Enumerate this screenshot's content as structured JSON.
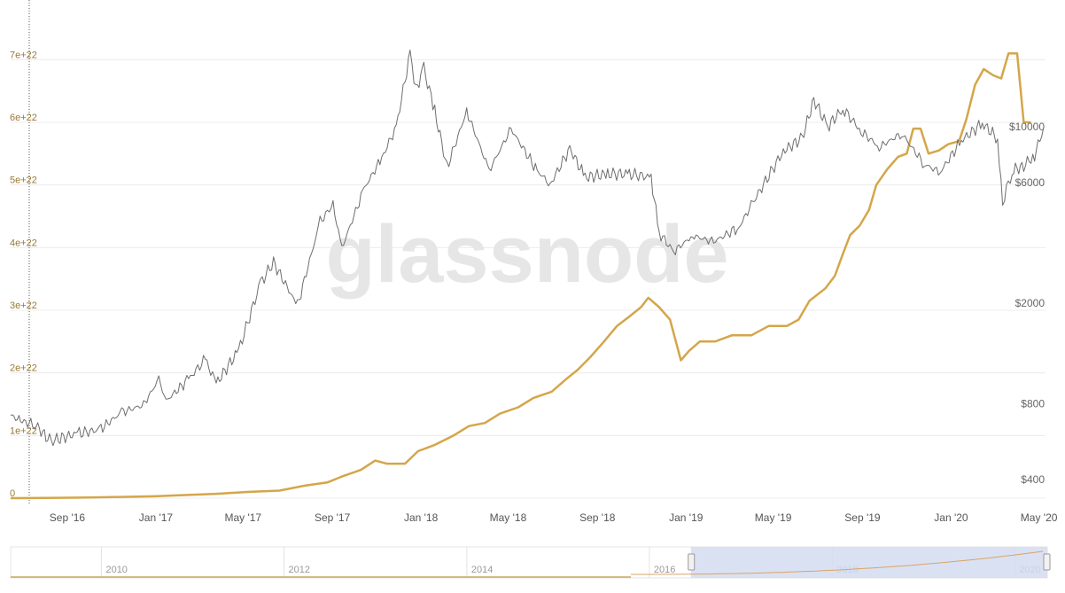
{
  "watermark": "glassnode",
  "colors": {
    "difficulty": "#D4A64A",
    "price": "#6E6E6E",
    "left_axis_text": "#9A7A36",
    "grid": "#ECECEC",
    "navigator_mask": "#D3DCF0",
    "navigator_line": "#D9A468"
  },
  "chart_data": {
    "type": "line",
    "x_axis": {
      "type": "date",
      "tick_labels": [
        "Sep '16",
        "Jan '17",
        "May '17",
        "Sep '17",
        "Jan '18",
        "May '18",
        "Sep '18",
        "Jan '19",
        "May '19",
        "Sep '19",
        "Jan '20",
        "May '20"
      ]
    },
    "y_left": {
      "tick_labels": [
        "0",
        "1e+22",
        "2e+22",
        "3e+22",
        "4e+22",
        "5e+22",
        "6e+22",
        "7e+22"
      ],
      "range": [
        0,
        7.5e+22
      ]
    },
    "y_right": {
      "scale": "log",
      "tick_labels": [
        "$400",
        "$800",
        "$2000",
        "$6000",
        "$10000"
      ],
      "range": [
        330,
        27000
      ]
    },
    "grid": true,
    "series": [
      {
        "axis": "left",
        "points": [
          [
            "2016-06-15",
            0.0
          ],
          [
            "2016-07-10",
            2e+19
          ],
          [
            "2016-08-20",
            5e+19
          ],
          [
            "2016-10-01",
            1e+20
          ],
          [
            "2016-11-15",
            2e+20
          ],
          [
            "2016-12-30",
            3e+20
          ],
          [
            "2017-02-10",
            5e+20
          ],
          [
            "2017-03-25",
            7e+20
          ],
          [
            "2017-05-10",
            1e+21
          ],
          [
            "2017-06-20",
            1.2e+21
          ],
          [
            "2017-07-25",
            2e+21
          ],
          [
            "2017-08-25",
            2.5e+21
          ],
          [
            "2017-09-15",
            3.5e+21
          ],
          [
            "2017-10-10",
            4.5e+21
          ],
          [
            "2017-10-30",
            6e+21
          ],
          [
            "2017-11-15",
            5.5e+21
          ],
          [
            "2017-12-10",
            5.5e+21
          ],
          [
            "2017-12-28",
            7.5e+21
          ],
          [
            "2018-01-20",
            8.5e+21
          ],
          [
            "2018-02-15",
            1e+22
          ],
          [
            "2018-03-08",
            1.15e+22
          ],
          [
            "2018-03-30",
            1.2e+22
          ],
          [
            "2018-04-20",
            1.35e+22
          ],
          [
            "2018-05-15",
            1.45e+22
          ],
          [
            "2018-06-05",
            1.6e+22
          ],
          [
            "2018-06-30",
            1.7e+22
          ],
          [
            "2018-07-20",
            1.9e+22
          ],
          [
            "2018-08-05",
            2.05e+22
          ],
          [
            "2018-08-22",
            2.25e+22
          ],
          [
            "2018-09-10",
            2.5e+22
          ],
          [
            "2018-09-28",
            2.75e+22
          ],
          [
            "2018-10-15",
            2.9e+22
          ],
          [
            "2018-10-31",
            3.05e+22
          ],
          [
            "2018-11-10",
            3.2e+22
          ],
          [
            "2018-11-25",
            3.05e+22
          ],
          [
            "2018-12-10",
            2.85e+22
          ],
          [
            "2018-12-25",
            2.2e+22
          ],
          [
            "2019-01-05",
            2.35e+22
          ],
          [
            "2019-01-20",
            2.5e+22
          ],
          [
            "2019-02-10",
            2.5e+22
          ],
          [
            "2019-03-05",
            2.6e+22
          ],
          [
            "2019-04-01",
            2.6e+22
          ],
          [
            "2019-04-25",
            2.75e+22
          ],
          [
            "2019-05-20",
            2.75e+22
          ],
          [
            "2019-06-05",
            2.85e+22
          ],
          [
            "2019-06-20",
            3.15e+22
          ],
          [
            "2019-07-01",
            3.25e+22
          ],
          [
            "2019-07-12",
            3.35e+22
          ],
          [
            "2019-07-25",
            3.55e+22
          ],
          [
            "2019-08-05",
            3.9e+22
          ],
          [
            "2019-08-15",
            4.2e+22
          ],
          [
            "2019-08-28",
            4.35e+22
          ],
          [
            "2019-09-10",
            4.6e+22
          ],
          [
            "2019-09-20",
            5e+22
          ],
          [
            "2019-10-05",
            5.25e+22
          ],
          [
            "2019-10-20",
            5.45e+22
          ],
          [
            "2019-11-01",
            5.5e+22
          ],
          [
            "2019-11-10",
            5.9e+22
          ],
          [
            "2019-11-20",
            5.9e+22
          ],
          [
            "2019-12-01",
            5.5e+22
          ],
          [
            "2019-12-15",
            5.55e+22
          ],
          [
            "2019-12-28",
            5.65e+22
          ],
          [
            "2020-01-12",
            5.7e+22
          ],
          [
            "2020-01-22",
            6.05e+22
          ],
          [
            "2020-02-03",
            6.6e+22
          ],
          [
            "2020-02-15",
            6.85e+22
          ],
          [
            "2020-02-28",
            6.75e+22
          ],
          [
            "2020-03-10",
            6.7e+22
          ],
          [
            "2020-03-20",
            7.1e+22
          ],
          [
            "2020-04-01",
            7.1e+22
          ],
          [
            "2020-04-10",
            6e+22
          ],
          [
            "2020-04-20",
            6e+22
          ]
        ]
      },
      {
        "axis": "right",
        "points": [
          [
            "2016-06-15",
            720
          ],
          [
            "2016-07-01",
            680
          ],
          [
            "2016-07-20",
            660
          ],
          [
            "2016-08-05",
            580
          ],
          [
            "2016-08-15",
            575
          ],
          [
            "2016-09-15",
            610
          ],
          [
            "2016-10-15",
            630
          ],
          [
            "2016-11-15",
            740
          ],
          [
            "2016-12-15",
            790
          ],
          [
            "2017-01-05",
            1000
          ],
          [
            "2017-01-15",
            820
          ],
          [
            "2017-02-15",
            1000
          ],
          [
            "2017-03-10",
            1200
          ],
          [
            "2017-03-25",
            960
          ],
          [
            "2017-04-25",
            1300
          ],
          [
            "2017-05-25",
            2400
          ],
          [
            "2017-06-12",
            2900
          ],
          [
            "2017-07-15",
            1950
          ],
          [
            "2017-08-15",
            4200
          ],
          [
            "2017-09-02",
            4900
          ],
          [
            "2017-09-14",
            3300
          ],
          [
            "2017-10-15",
            5700
          ],
          [
            "2017-11-08",
            7500
          ],
          [
            "2017-11-28",
            10000
          ],
          [
            "2017-12-17",
            19500
          ],
          [
            "2017-12-25",
            14000
          ],
          [
            "2018-01-05",
            17000
          ],
          [
            "2018-01-20",
            11500
          ],
          [
            "2018-02-06",
            6900
          ],
          [
            "2018-03-05",
            11500
          ],
          [
            "2018-04-05",
            6700
          ],
          [
            "2018-05-05",
            9800
          ],
          [
            "2018-06-10",
            6700
          ],
          [
            "2018-06-28",
            5900
          ],
          [
            "2018-07-25",
            8200
          ],
          [
            "2018-08-15",
            6300
          ],
          [
            "2018-09-15",
            6500
          ],
          [
            "2018-10-15",
            6500
          ],
          [
            "2018-11-14",
            6300
          ],
          [
            "2018-11-25",
            3800
          ],
          [
            "2018-12-15",
            3200
          ],
          [
            "2019-01-10",
            3700
          ],
          [
            "2019-02-08",
            3500
          ],
          [
            "2019-03-15",
            4000
          ],
          [
            "2019-04-03",
            5000
          ],
          [
            "2019-05-15",
            8000
          ],
          [
            "2019-06-10",
            9000
          ],
          [
            "2019-06-26",
            12800
          ],
          [
            "2019-07-15",
            10000
          ],
          [
            "2019-08-05",
            11800
          ],
          [
            "2019-08-30",
            9600
          ],
          [
            "2019-09-24",
            8300
          ],
          [
            "2019-10-25",
            9400
          ],
          [
            "2019-11-25",
            7100
          ],
          [
            "2019-12-17",
            6600
          ],
          [
            "2020-01-15",
            8800
          ],
          [
            "2020-02-13",
            10300
          ],
          [
            "2020-03-05",
            9000
          ],
          [
            "2020-03-12",
            5000
          ],
          [
            "2020-03-25",
            6700
          ],
          [
            "2020-04-10",
            7000
          ],
          [
            "2020-04-25",
            7700
          ],
          [
            "2020-05-07",
            9800
          ]
        ]
      }
    ],
    "navigator": {
      "year_labels": [
        "2010",
        "2012",
        "2014",
        "2016",
        "2018",
        "2020"
      ],
      "selected_range": [
        "2016-06-15",
        "2020-05-10"
      ]
    }
  }
}
